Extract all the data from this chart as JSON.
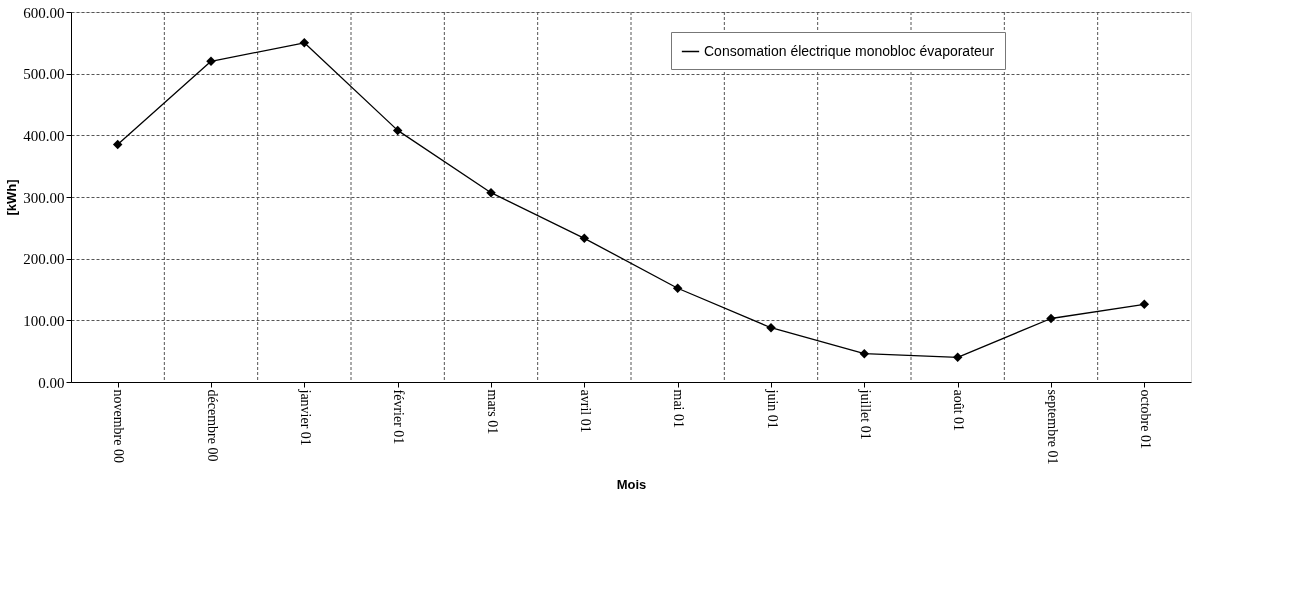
{
  "chart_data": {
    "type": "line",
    "xlabel": "Mois",
    "ylabel": "[kWh]",
    "categories": [
      "novembre 00",
      "décembre 00",
      "janvier 01",
      "février 01",
      "mars 01",
      "avril 01",
      "mai 01",
      "juin 01",
      "juillet 01",
      "août 01",
      "septembre 01",
      "octobre 01"
    ],
    "series": [
      {
        "name": "Consomation électrique monobloc évaporateur",
        "color": "#000000",
        "values": [
          385,
          520,
          550,
          408,
          307,
          233,
          152,
          88,
          46,
          40,
          103,
          126
        ]
      }
    ],
    "ylim": [
      0,
      600
    ],
    "yticks": [
      {
        "value": 0,
        "label": "0.00"
      },
      {
        "value": 100,
        "label": "100.00"
      },
      {
        "value": 200,
        "label": "200.00"
      },
      {
        "value": 300,
        "label": "300.00"
      },
      {
        "value": 400,
        "label": "400.00"
      },
      {
        "value": 500,
        "label": "500.00"
      },
      {
        "value": 600,
        "label": "600.00"
      }
    ],
    "grid": true,
    "legend": "top right",
    "marker": "diamond",
    "line_style": "solid"
  }
}
